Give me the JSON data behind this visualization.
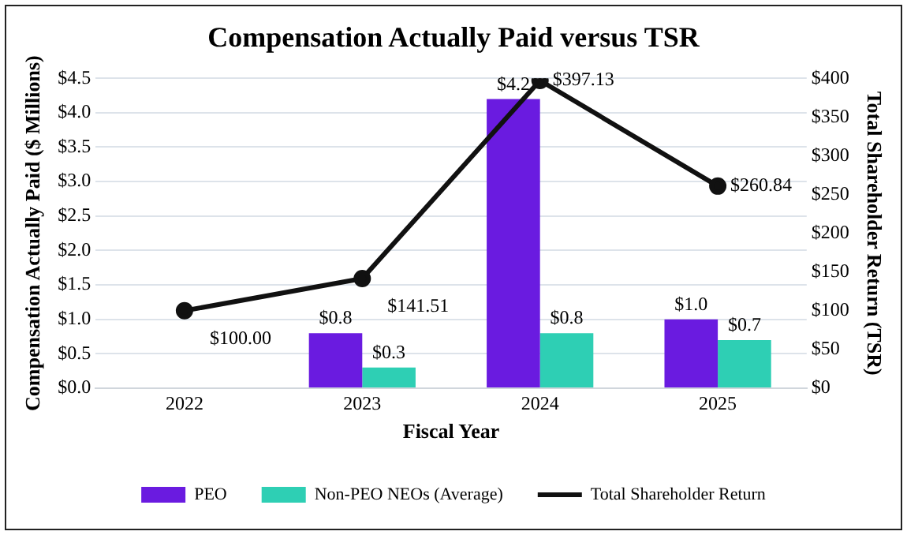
{
  "chart_data": {
    "type": "bar",
    "title": "Compensation Actually Paid versus TSR",
    "xlabel": "Fiscal Year",
    "ylabel": "Compensation Actually Paid ($ Millions)",
    "y2label": "Total Shareholder Return (TSR)",
    "categories": [
      "2022",
      "2023",
      "2024",
      "2025"
    ],
    "series": [
      {
        "name": "PEO",
        "color": "#6a1be0",
        "values": [
          null,
          0.8,
          4.2,
          1.0
        ],
        "value_labels": [
          null,
          "$0.8",
          "$4.2",
          "$1.0"
        ]
      },
      {
        "name": "Non-PEO NEOs (Average)",
        "color": "#2ecfb4",
        "values": [
          null,
          0.3,
          0.8,
          0.7
        ],
        "value_labels": [
          null,
          "$0.3",
          "$0.8",
          "$0.7"
        ]
      },
      {
        "name": "Total Shareholder Return",
        "type": "line",
        "axis": "y2",
        "color": "#111111",
        "values": [
          100.0,
          141.51,
          397.13,
          260.84
        ],
        "value_labels": [
          "$100.00",
          "$141.51",
          "$397.13",
          "$260.84"
        ]
      }
    ],
    "ylim": [
      0,
      4.5
    ],
    "yticks": [
      {
        "value": 0,
        "label": "$0.0"
      },
      {
        "value": 0.5,
        "label": "$0.5"
      },
      {
        "value": 1,
        "label": "$1.0"
      },
      {
        "value": 1.5,
        "label": "$1.5"
      },
      {
        "value": 2,
        "label": "$2.0"
      },
      {
        "value": 2.5,
        "label": "$2.5"
      },
      {
        "value": 3,
        "label": "$3.0"
      },
      {
        "value": 3.5,
        "label": "$3.5"
      },
      {
        "value": 4,
        "label": "$4.0"
      },
      {
        "value": 4.5,
        "label": "$4.5"
      }
    ],
    "y2lim": [
      0,
      400
    ],
    "y2ticks": [
      {
        "value": 0,
        "label": "$0"
      },
      {
        "value": 50,
        "label": "$50"
      },
      {
        "value": 100,
        "label": "$100"
      },
      {
        "value": 150,
        "label": "$150"
      },
      {
        "value": 200,
        "label": "$200"
      },
      {
        "value": 250,
        "label": "$250"
      },
      {
        "value": 300,
        "label": "$300"
      },
      {
        "value": 350,
        "label": "$350"
      },
      {
        "value": 400,
        "label": "$400"
      }
    ],
    "grid": "y",
    "legend": "bottom",
    "marker": "circle",
    "line_style": "solid"
  }
}
